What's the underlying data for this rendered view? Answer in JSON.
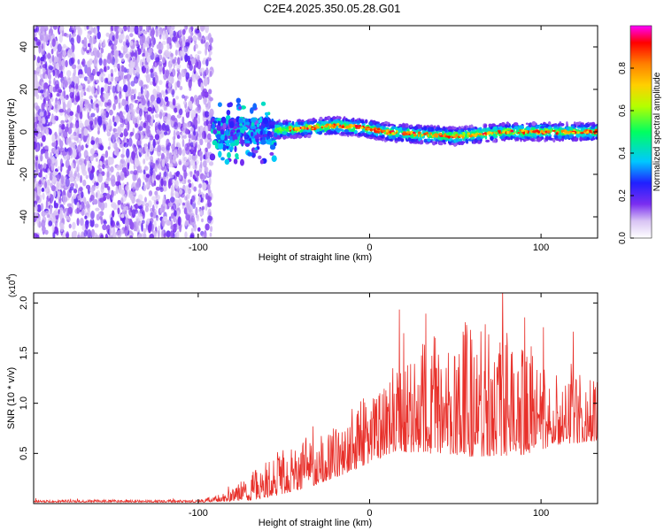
{
  "title": "C2E4.2025.350.05.28.G01",
  "colors": {
    "snr_line": "#e8302a",
    "intensity": "#6b00d6",
    "colormap": [
      "#ffffff",
      "#dcc8f5",
      "#b07cf0",
      "#7a2ef0",
      "#2020ff",
      "#00c8ff",
      "#00ff60",
      "#b4ff00",
      "#ffd000",
      "#ff8000",
      "#ff0000",
      "#ff00ff"
    ]
  },
  "chart_data": [
    {
      "type": "heatmap",
      "xlabel": "Height of straight line (km)",
      "ylabel": "Frequency (Hz)",
      "xlim": [
        -196,
        133
      ],
      "ylim": [
        -50,
        50
      ],
      "xticks": [
        -100,
        0,
        100
      ],
      "xtick_labels": [
        "-100",
        "0",
        "100"
      ],
      "yticks": [
        -40,
        -20,
        0,
        20,
        40
      ],
      "ytick_labels": [
        "-40",
        "-20",
        "0",
        "20",
        "40"
      ],
      "colorbar": {
        "label": "Normalized spectral amplitude",
        "range": [
          0,
          1
        ],
        "ticks": [
          0.0,
          0.2,
          0.4,
          0.6,
          0.8
        ],
        "tick_labels": [
          "0.0",
          "0.2",
          "0.4",
          "0.6",
          "0.8"
        ]
      },
      "regions": [
        {
          "x_from": -196,
          "x_to": -92,
          "freq_from": -50,
          "freq_to": 50,
          "amplitude": 0.12,
          "pattern": "noise"
        },
        {
          "x_from": -92,
          "x_to": -55,
          "freq_center": 0,
          "freq_halfwidth": 6,
          "amplitude": 0.35,
          "pattern": "scattered"
        },
        {
          "x_from": -55,
          "x_to": 133,
          "freq_center": 1,
          "freq_halfwidth": 4,
          "amplitude": 0.8,
          "pattern": "ridge"
        }
      ],
      "ridge_center": [
        {
          "x": -55,
          "f": 1
        },
        {
          "x": -40,
          "f": 1.5
        },
        {
          "x": -20,
          "f": 3
        },
        {
          "x": -5,
          "f": 2
        },
        {
          "x": 10,
          "f": 0
        },
        {
          "x": 25,
          "f": -1
        },
        {
          "x": 50,
          "f": -2
        },
        {
          "x": 80,
          "f": 0
        },
        {
          "x": 110,
          "f": 0
        },
        {
          "x": 133,
          "f": 0
        }
      ]
    },
    {
      "type": "line",
      "xlabel": "Height of straight line (km)",
      "ylabel": "SNR (10 * v/v)",
      "y_scale_label": "(x10",
      "y_scale_exp": "4",
      "xlim": [
        -196,
        133
      ],
      "ylim": [
        0,
        2.1
      ],
      "xticks": [
        -100,
        0,
        100
      ],
      "xtick_labels": [
        "-100",
        "0",
        "100"
      ],
      "yticks": [
        0.5,
        1.0,
        1.5,
        2.0
      ],
      "ytick_labels": [
        "0.5",
        "1.0",
        "1.5",
        "2.0"
      ],
      "series": [
        {
          "envelope": [
            {
              "x": -196,
              "base": 0.02,
              "amp": 0.02
            },
            {
              "x": -100,
              "base": 0.02,
              "amp": 0.02
            },
            {
              "x": -85,
              "base": 0.04,
              "amp": 0.06
            },
            {
              "x": -70,
              "base": 0.1,
              "amp": 0.2
            },
            {
              "x": -55,
              "base": 0.2,
              "amp": 0.35
            },
            {
              "x": -35,
              "base": 0.3,
              "amp": 0.4
            },
            {
              "x": -15,
              "base": 0.45,
              "amp": 0.45
            },
            {
              "x": 0,
              "base": 0.6,
              "amp": 0.55
            },
            {
              "x": 15,
              "base": 0.75,
              "amp": 0.65
            },
            {
              "x": 30,
              "base": 0.8,
              "amp": 0.85
            },
            {
              "x": 60,
              "base": 0.85,
              "amp": 1.1
            },
            {
              "x": 90,
              "base": 0.8,
              "amp": 0.9
            },
            {
              "x": 110,
              "base": 0.78,
              "amp": 0.55
            },
            {
              "x": 133,
              "base": 0.8,
              "amp": 0.5
            }
          ]
        }
      ]
    }
  ]
}
